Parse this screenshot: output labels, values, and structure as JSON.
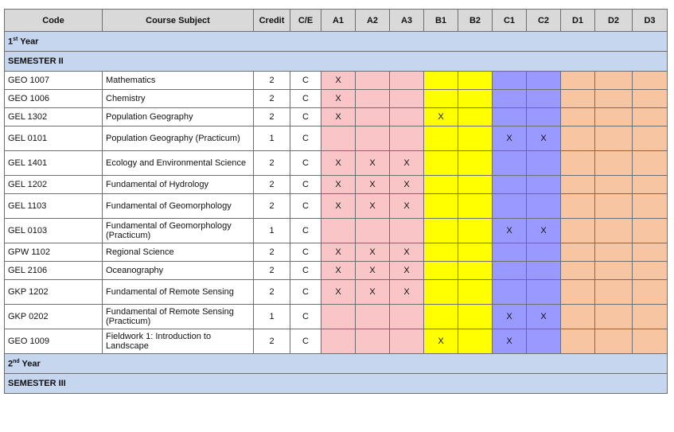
{
  "headers": [
    "Code",
    "Course Subject",
    "Credit",
    "C/E",
    "A1",
    "A2",
    "A3",
    "B1",
    "B2",
    "C1",
    "C2",
    "D1",
    "D2",
    "D3"
  ],
  "year1": {
    "num": "1",
    "sup": "st",
    "label": " Year"
  },
  "semester2": "SEMESTER II",
  "year2": {
    "num": "2",
    "sup": "nd",
    "label": " Year"
  },
  "semester3": "SEMESTER III",
  "rows": [
    {
      "code": "GEO 1007",
      "subject": "Mathematics",
      "credit": "2",
      "ce": "C",
      "marks": [
        "X",
        "",
        "",
        "",
        "",
        "",
        "",
        "",
        "",
        ""
      ],
      "tall": false
    },
    {
      "code": "GEO 1006",
      "subject": "Chemistry",
      "credit": "2",
      "ce": "C",
      "marks": [
        "X",
        "",
        "",
        "",
        "",
        "",
        "",
        "",
        "",
        ""
      ],
      "tall": false
    },
    {
      "code": "GEL 1302",
      "subject": "Population Geography",
      "credit": "2",
      "ce": "C",
      "marks": [
        "X",
        "",
        "",
        "X",
        "",
        "",
        "",
        "",
        "",
        ""
      ],
      "tall": false
    },
    {
      "code": "GEL 0101",
      "subject": "Population Geography (Practicum)",
      "credit": "1",
      "ce": "C",
      "marks": [
        "",
        "",
        "",
        "",
        "",
        "X",
        "X",
        "",
        "",
        ""
      ],
      "tall": true
    },
    {
      "code": "GEL 1401",
      "subject": "Ecology and Environmental Science",
      "credit": "2",
      "ce": "C",
      "marks": [
        "X",
        "X",
        "X",
        "",
        "",
        "",
        "",
        "",
        "",
        ""
      ],
      "tall": true
    },
    {
      "code": "GEL 1202",
      "subject": "Fundamental of Hydrology",
      "credit": "2",
      "ce": "C",
      "marks": [
        "X",
        "X",
        "X",
        "",
        "",
        "",
        "",
        "",
        "",
        ""
      ],
      "tall": false
    },
    {
      "code": "GEL 1103",
      "subject": "Fundamental of Geomorphology",
      "credit": "2",
      "ce": "C",
      "marks": [
        "X",
        "X",
        "X",
        "",
        "",
        "",
        "",
        "",
        "",
        ""
      ],
      "tall": true
    },
    {
      "code": "GEL 0103",
      "subject": "Fundamental of Geomorphology (Practicum)",
      "credit": "1",
      "ce": "C",
      "marks": [
        "",
        "",
        "",
        "",
        "",
        "X",
        "X",
        "",
        "",
        ""
      ],
      "tall": true
    },
    {
      "code": "GPW 1102",
      "subject": "Regional Science",
      "credit": "2",
      "ce": "C",
      "marks": [
        "X",
        "X",
        "X",
        "",
        "",
        "",
        "",
        "",
        "",
        ""
      ],
      "tall": false
    },
    {
      "code": "GEL 2106",
      "subject": "Oceanography",
      "credit": "2",
      "ce": "C",
      "marks": [
        "X",
        "X",
        "X",
        "",
        "",
        "",
        "",
        "",
        "",
        ""
      ],
      "tall": false
    },
    {
      "code": "GKP 1202",
      "subject": "Fundamental of Remote Sensing",
      "credit": "2",
      "ce": "C",
      "marks": [
        "X",
        "X",
        "X",
        "",
        "",
        "",
        "",
        "",
        "",
        ""
      ],
      "tall": true
    },
    {
      "code": "GKP 0202",
      "subject": "Fundamental of Remote Sensing (Practicum)",
      "credit": "1",
      "ce": "C",
      "marks": [
        "",
        "",
        "",
        "",
        "",
        "X",
        "X",
        "",
        "",
        ""
      ],
      "tall": true
    },
    {
      "code": "GEO 1009",
      "subject": "Fieldwork 1: Introduction to Landscape",
      "credit": "2",
      "ce": "C",
      "marks": [
        "",
        "",
        "",
        "X",
        "",
        "X",
        "",
        "",
        "",
        ""
      ],
      "tall": true
    }
  ]
}
